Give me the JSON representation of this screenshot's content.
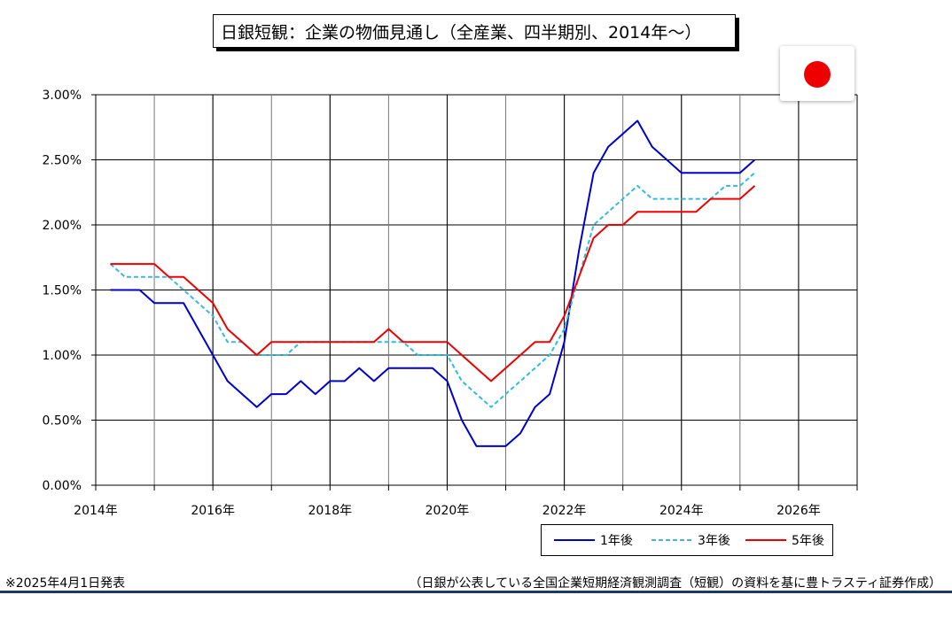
{
  "title": "日銀短観：企業の物価見通し（全産業、四半期別、2014年〜）",
  "footnote_left": "※2025年4月1日発表",
  "footnote_right": "（日銀が公表している全国企業短期経済観測調査（短観）の資料を基に豊トラスティ証券作成）",
  "colors": {
    "series_1y": "#0000cc",
    "series_3y": "#33bbdd",
    "series_5y": "#ee0000",
    "bottom_rule": "#1f3864",
    "flag": "#ee0000"
  },
  "chart_data": {
    "type": "line",
    "title": "日銀短観：企業の物価見通し（全産業、四半期別、2014年〜）",
    "xlabel": "",
    "ylabel": "",
    "x_ticks": [
      "2014年",
      "2016年",
      "2018年",
      "2020年",
      "2022年",
      "2024年",
      "2026年"
    ],
    "x_tick_years": [
      2014,
      2016,
      2018,
      2020,
      2022,
      2024,
      2026
    ],
    "xlim": [
      2014,
      2027
    ],
    "y_ticks": [
      "0.00%",
      "0.50%",
      "1.00%",
      "1.50%",
      "2.00%",
      "2.50%",
      "3.00%"
    ],
    "y_tick_values": [
      0,
      0.5,
      1.0,
      1.5,
      2.0,
      2.5,
      3.0
    ],
    "ylim": [
      0,
      3.0
    ],
    "grid": true,
    "legend_position": "bottom-right",
    "x": [
      "2014Q1",
      "2014Q2",
      "2014Q3",
      "2014Q4",
      "2015Q1",
      "2015Q2",
      "2015Q3",
      "2015Q4",
      "2016Q1",
      "2016Q2",
      "2016Q3",
      "2016Q4",
      "2017Q1",
      "2017Q2",
      "2017Q3",
      "2017Q4",
      "2018Q1",
      "2018Q2",
      "2018Q3",
      "2018Q4",
      "2019Q1",
      "2019Q2",
      "2019Q3",
      "2019Q4",
      "2020Q1",
      "2020Q2",
      "2020Q3",
      "2020Q4",
      "2021Q1",
      "2021Q2",
      "2021Q3",
      "2021Q4",
      "2022Q1",
      "2022Q2",
      "2022Q3",
      "2022Q4",
      "2023Q1",
      "2023Q2",
      "2023Q3",
      "2023Q4",
      "2024Q1",
      "2024Q2",
      "2024Q3",
      "2024Q4",
      "2025Q1"
    ],
    "series": [
      {
        "name": "1年後",
        "color": "#0000cc",
        "dash": "solid",
        "values": [
          1.5,
          1.5,
          1.5,
          1.4,
          1.4,
          1.4,
          1.2,
          1.0,
          0.8,
          0.7,
          0.6,
          0.7,
          0.7,
          0.8,
          0.7,
          0.8,
          0.8,
          0.9,
          0.8,
          0.9,
          0.9,
          0.9,
          0.9,
          0.8,
          0.5,
          0.3,
          0.3,
          0.3,
          0.4,
          0.6,
          0.7,
          1.1,
          1.8,
          2.4,
          2.6,
          2.7,
          2.8,
          2.6,
          2.5,
          2.4,
          2.4,
          2.4,
          2.4,
          2.4,
          2.5
        ]
      },
      {
        "name": "3年後",
        "color": "#33bbdd",
        "dash": "dashed",
        "values": [
          1.7,
          1.6,
          1.6,
          1.6,
          1.6,
          1.5,
          1.4,
          1.3,
          1.1,
          1.1,
          1.0,
          1.0,
          1.0,
          1.1,
          1.1,
          1.1,
          1.1,
          1.1,
          1.1,
          1.1,
          1.1,
          1.0,
          1.0,
          1.0,
          0.8,
          0.7,
          0.6,
          0.7,
          0.8,
          0.9,
          1.0,
          1.2,
          1.6,
          2.0,
          2.1,
          2.2,
          2.3,
          2.2,
          2.2,
          2.2,
          2.2,
          2.2,
          2.3,
          2.3,
          2.4
        ]
      },
      {
        "name": "5年後",
        "color": "#ee0000",
        "dash": "solid",
        "values": [
          1.7,
          1.7,
          1.7,
          1.7,
          1.6,
          1.6,
          1.5,
          1.4,
          1.2,
          1.1,
          1.0,
          1.1,
          1.1,
          1.1,
          1.1,
          1.1,
          1.1,
          1.1,
          1.1,
          1.2,
          1.1,
          1.1,
          1.1,
          1.1,
          1.0,
          0.9,
          0.8,
          0.9,
          1.0,
          1.1,
          1.1,
          1.3,
          1.6,
          1.9,
          2.0,
          2.0,
          2.1,
          2.1,
          2.1,
          2.1,
          2.1,
          2.2,
          2.2,
          2.2,
          2.3
        ]
      }
    ]
  }
}
